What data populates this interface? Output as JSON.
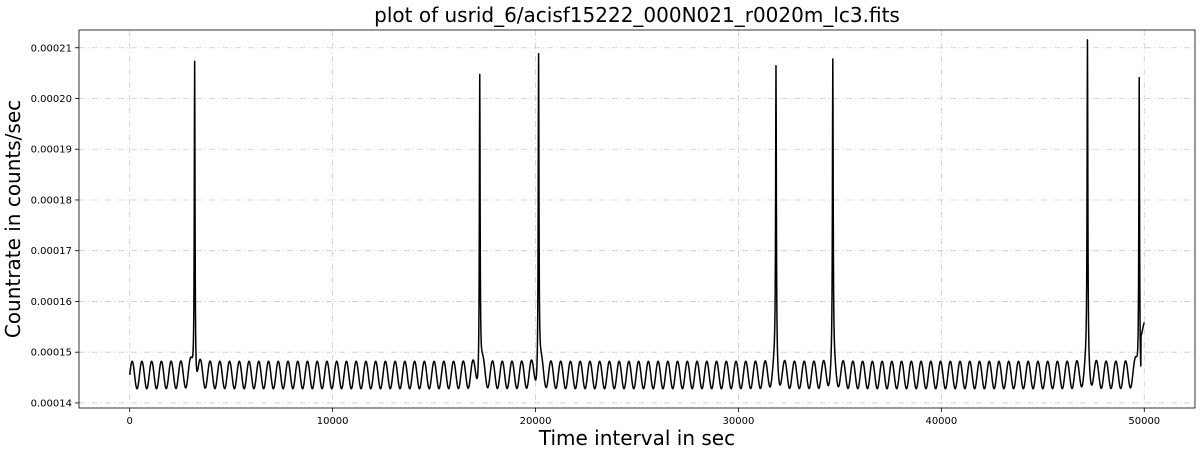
{
  "chart_data": {
    "type": "line",
    "title": "plot of usrid_6/acisf15222_000N021_r0020m_lc3.fits",
    "xlabel": "Time interval in sec",
    "ylabel": "Countrate in counts/sec",
    "xlim": [
      -2500,
      52500
    ],
    "ylim": [
      0.000139,
      0.0002135
    ],
    "xticks": [
      0,
      10000,
      20000,
      30000,
      40000,
      50000
    ],
    "xtick_labels": [
      "0",
      "10000",
      "20000",
      "30000",
      "40000",
      "50000"
    ],
    "yticks": [
      0.00014,
      0.00015,
      0.00016,
      0.00017,
      0.00018,
      0.00019,
      0.0002,
      0.00021
    ],
    "ytick_labels": [
      "0.00014",
      "0.00015",
      "0.00016",
      "0.00017",
      "0.00018",
      "0.00019",
      "0.00020",
      "0.00021"
    ],
    "grid": true,
    "line_color": "#000000",
    "series": [
      {
        "baseline": 0.0001455,
        "oscillation_amplitude": 2.7e-06,
        "oscillation_period": 480,
        "x_start": 0,
        "x_end": 50000,
        "end_value": 0.000156,
        "peaks": [
          {
            "x": 3200,
            "y": 0.000211
          },
          {
            "x": 17250,
            "y": 0.000207
          },
          {
            "x": 20150,
            "y": 0.0002105
          },
          {
            "x": 31850,
            "y": 0.0002055
          },
          {
            "x": 34650,
            "y": 0.0002065
          },
          {
            "x": 47200,
            "y": 0.0002105
          },
          {
            "x": 49750,
            "y": 0.0002075
          }
        ]
      }
    ]
  }
}
